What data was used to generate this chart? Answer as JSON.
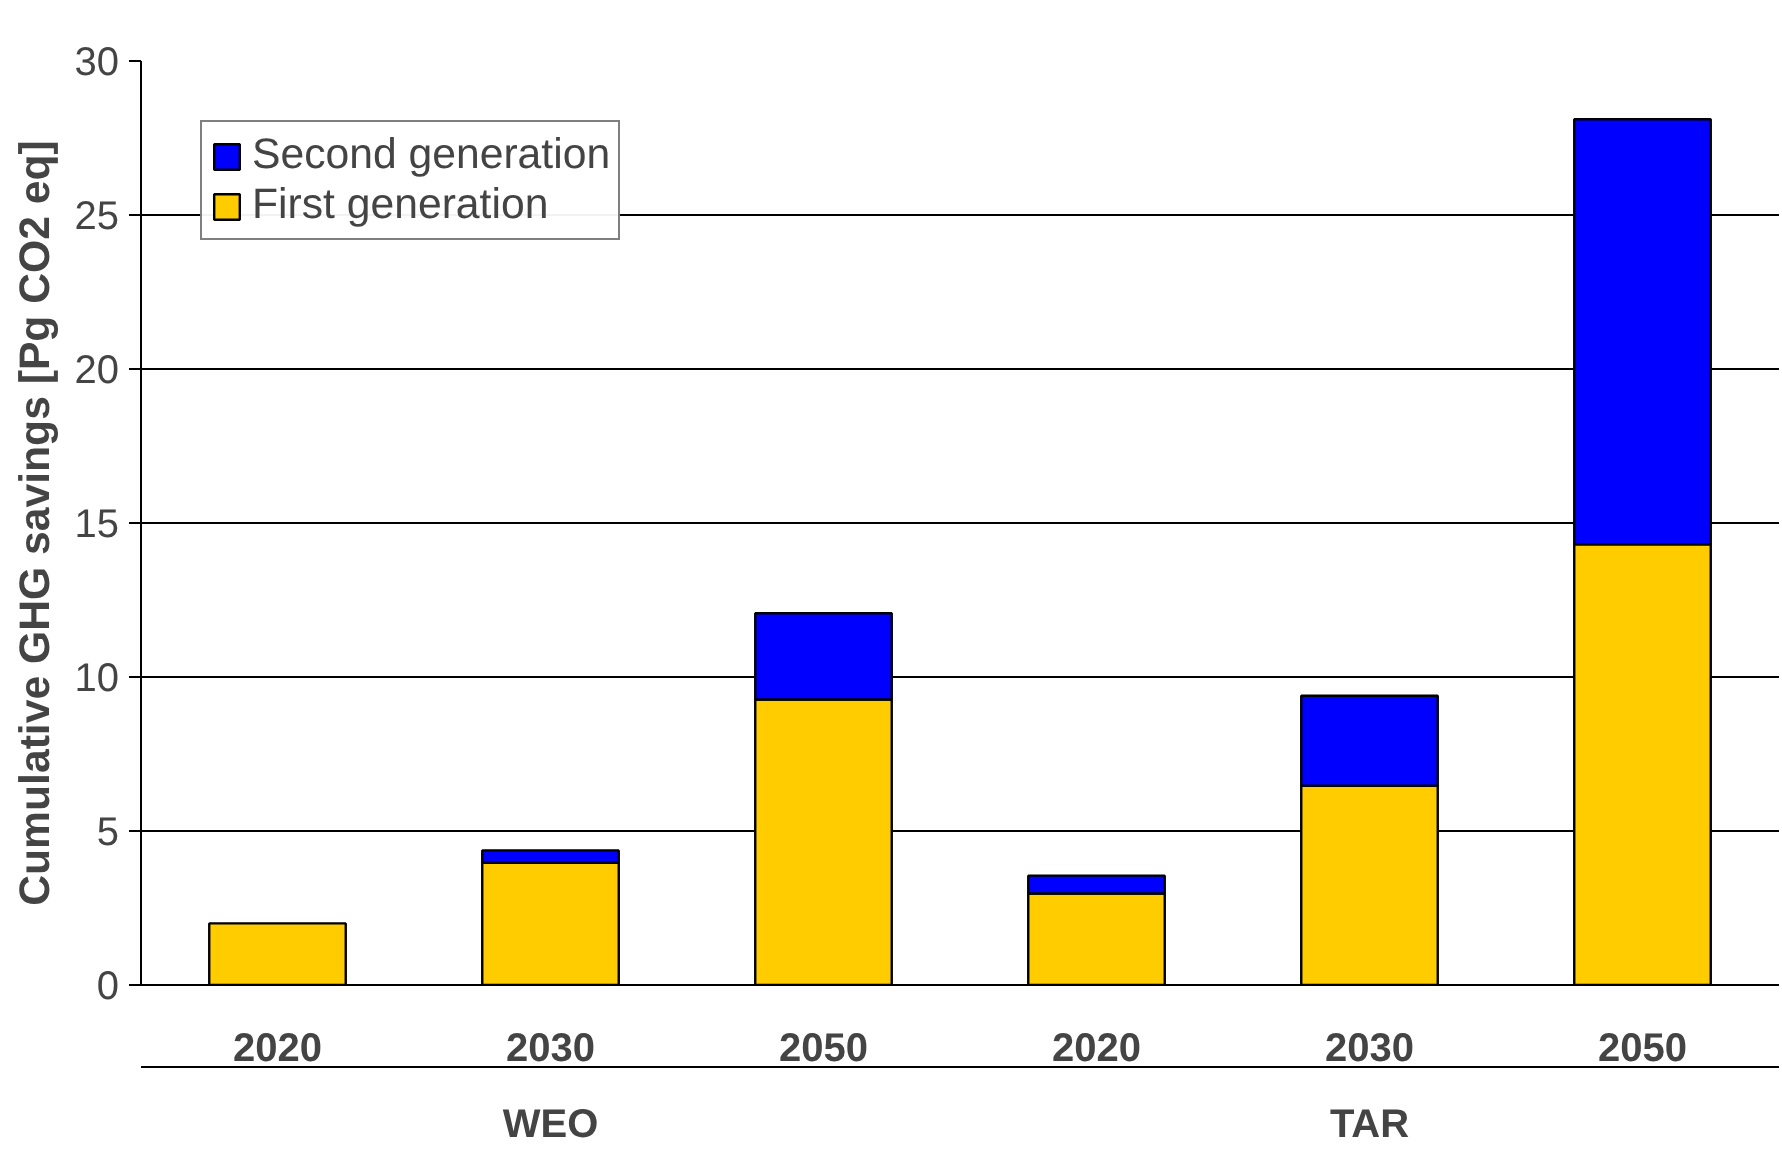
{
  "chart_data": {
    "type": "bar",
    "stacked": true,
    "ylabel": "Cumulative GHG savings [Pg CO2 eq]",
    "categories": [
      "2020",
      "2030",
      "2050",
      "2020",
      "2030",
      "2050"
    ],
    "series": [
      {
        "name": "First generation",
        "color": "#ffcc00",
        "values": [
          2.0,
          3.97,
          9.27,
          2.97,
          6.47,
          14.31
        ]
      },
      {
        "name": "Second generation",
        "color": "#0000ff",
        "values": [
          null,
          0.4,
          2.8,
          0.58,
          2.92,
          13.8
        ]
      }
    ],
    "annotations": [
      "WEO",
      "TAR"
    ],
    "ylim": [
      0,
      30
    ],
    "yticks": [
      0,
      5,
      10,
      15,
      20,
      25,
      30
    ],
    "grid": "y",
    "legend": "top left"
  }
}
